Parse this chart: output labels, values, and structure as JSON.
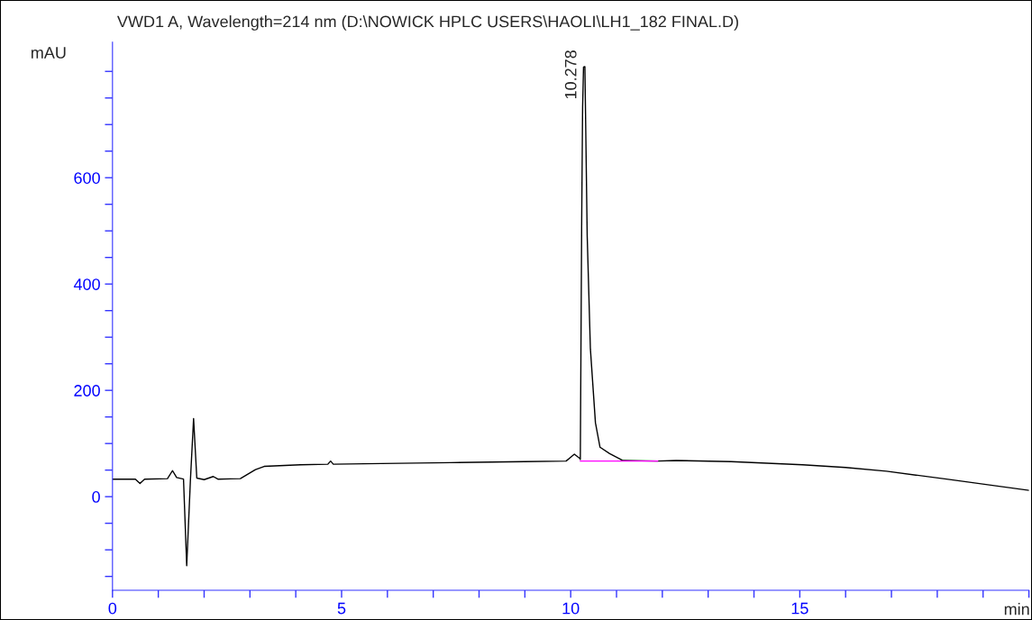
{
  "chart_data": {
    "type": "line",
    "title": "VWD1 A, Wavelength=214 nm (D:\\NOWICK HPLC USERS\\HAOLI\\LH1_182 FINAL.D)",
    "xlabel": "min",
    "ylabel": "mAU",
    "series": [
      {
        "color": "#000000",
        "x": [
          0,
          0.5,
          0.6,
          0.7,
          1.2,
          1.31,
          1.4,
          1.55,
          1.62,
          1.7,
          1.77,
          1.84,
          2.0,
          2.2,
          2.3,
          2.79,
          3.12,
          3.31,
          4.1,
          4.7,
          4.76,
          4.82,
          5.5,
          7.38,
          9.0,
          9.9,
          10.08,
          10.2,
          10.21,
          10.24,
          10.26,
          10.28,
          10.31,
          10.36,
          10.43,
          10.54,
          10.64,
          10.85,
          11.14,
          11.9,
          12.3,
          13.5,
          15.06,
          16.0,
          16.89,
          18.2,
          20.0
        ],
        "values": [
          33,
          33,
          25,
          33,
          34,
          49,
          36,
          33,
          -130,
          30,
          147,
          35,
          32,
          38,
          33,
          34,
          51,
          57,
          60,
          61,
          67,
          61,
          62,
          64,
          66,
          67,
          80,
          72,
          70,
          521,
          733,
          808,
          809,
          491,
          278,
          139,
          93,
          81,
          68,
          67,
          68,
          66,
          60,
          55,
          48,
          33,
          12
        ]
      },
      {
        "color": "#ff00ff",
        "x": [
          10.21,
          11.9
        ],
        "values": [
          67,
          67
        ]
      }
    ],
    "annotations": [
      {
        "text": "10.278",
        "x": 10.278,
        "y": 808
      }
    ],
    "xlim": [
      0,
      20
    ],
    "xticks": [
      0,
      {
        "value": 1,
        "label": null
      },
      {
        "value": 2,
        "label": null
      },
      {
        "value": 3,
        "label": null
      },
      {
        "value": 4,
        "label": null
      },
      5,
      {
        "value": 6,
        "label": null
      },
      {
        "value": 7,
        "label": null
      },
      {
        "value": 8,
        "label": null
      },
      {
        "value": 9,
        "label": null
      },
      10,
      {
        "value": 11,
        "label": null
      },
      {
        "value": 12,
        "label": null
      },
      {
        "value": 13,
        "label": null
      },
      {
        "value": 14,
        "label": null
      },
      15,
      {
        "value": 16,
        "label": null
      },
      {
        "value": 17,
        "label": null
      },
      {
        "value": 18,
        "label": null
      },
      {
        "value": 19,
        "label": null
      },
      {
        "value": 20,
        "label": null
      }
    ],
    "ylim": [
      -176,
      855
    ],
    "yticks": [
      {
        "value": -150,
        "label": null
      },
      {
        "value": -100,
        "label": null
      },
      {
        "value": -50,
        "label": null
      },
      0,
      {
        "value": 50,
        "label": null
      },
      {
        "value": 100,
        "label": null
      },
      {
        "value": 150,
        "label": null
      },
      200,
      {
        "value": 250,
        "label": null
      },
      {
        "value": 300,
        "label": null
      },
      {
        "value": 350,
        "label": null
      },
      400,
      {
        "value": 450,
        "label": null
      },
      {
        "value": 500,
        "label": null
      },
      {
        "value": 550,
        "label": null
      },
      600,
      {
        "value": 650,
        "label": null
      },
      {
        "value": 700,
        "label": null
      },
      {
        "value": 750,
        "label": null
      },
      {
        "value": 800,
        "label": null
      }
    ],
    "grid": false,
    "marker": "none",
    "line_style": "solid"
  }
}
